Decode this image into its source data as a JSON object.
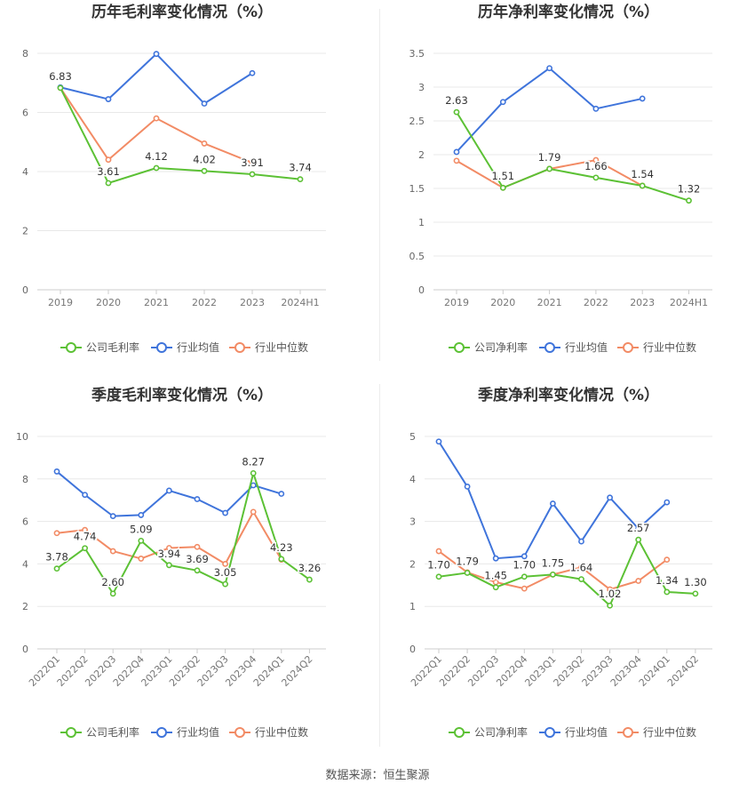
{
  "source_text": "数据来源：恒生聚源",
  "colors": {
    "company": "#5cc135",
    "industry_avg": "#3f74db",
    "industry_median": "#f28b65"
  },
  "chart_data": [
    {
      "type": "line",
      "title": "历年毛利率变化情况（%）",
      "categories": [
        "2019",
        "2020",
        "2021",
        "2022",
        "2023",
        "2024H1"
      ],
      "ylim": [
        0,
        8
      ],
      "yticks": [
        "0",
        "2",
        "4",
        "6",
        "8"
      ],
      "grid": true,
      "legend": "bottom",
      "series": [
        {
          "name": "公司毛利率",
          "values": [
            6.83,
            3.61,
            4.12,
            4.02,
            3.91,
            3.74
          ],
          "labels": [
            "6.83",
            "3.61",
            "4.12",
            "4.02",
            "3.91",
            "3.74"
          ]
        },
        {
          "name": "行业均值",
          "values": [
            6.85,
            6.45,
            7.98,
            6.3,
            7.33,
            null
          ]
        },
        {
          "name": "行业中位数",
          "values": [
            6.83,
            4.4,
            5.8,
            4.95,
            4.3,
            null
          ]
        }
      ]
    },
    {
      "type": "line",
      "title": "历年净利率变化情况（%）",
      "categories": [
        "2019",
        "2020",
        "2021",
        "2022",
        "2023",
        "2024H1"
      ],
      "ylim": [
        0,
        3.5
      ],
      "yticks": [
        "0",
        "0.5",
        "1",
        "1.5",
        "2",
        "2.5",
        "3",
        "3.5"
      ],
      "grid": true,
      "legend": "bottom",
      "series": [
        {
          "name": "公司净利率",
          "values": [
            2.63,
            1.51,
            1.79,
            1.66,
            1.54,
            1.32
          ],
          "labels": [
            "2.63",
            "1.51",
            "1.79",
            "1.66",
            "1.54",
            "1.32"
          ]
        },
        {
          "name": "行业均值",
          "values": [
            2.04,
            2.78,
            3.28,
            2.68,
            2.83,
            null
          ]
        },
        {
          "name": "行业中位数",
          "values": [
            1.91,
            1.51,
            1.79,
            1.92,
            1.54,
            null
          ]
        }
      ]
    },
    {
      "type": "line",
      "title": "季度毛利率变化情况（%）",
      "categories": [
        "2022Q1",
        "2022Q2",
        "2022Q3",
        "2022Q4",
        "2023Q1",
        "2023Q2",
        "2023Q3",
        "2023Q4",
        "2024Q1",
        "2024Q2"
      ],
      "ylim": [
        0,
        10
      ],
      "yticks": [
        "0",
        "2",
        "4",
        "6",
        "8",
        "10"
      ],
      "grid": true,
      "legend": "bottom",
      "series": [
        {
          "name": "公司毛利率",
          "values": [
            3.78,
            4.74,
            2.6,
            5.09,
            3.94,
            3.69,
            3.05,
            8.27,
            4.23,
            3.26
          ],
          "labels": [
            "3.78",
            "4.74",
            "2.60",
            "5.09",
            "3.94",
            "3.69",
            "3.05",
            "8.27",
            "4.23",
            "3.26"
          ]
        },
        {
          "name": "行业均值",
          "values": [
            8.35,
            7.25,
            6.25,
            6.3,
            7.45,
            7.05,
            6.4,
            7.7,
            7.3,
            null
          ]
        },
        {
          "name": "行业中位数",
          "values": [
            5.45,
            5.6,
            4.6,
            4.25,
            4.75,
            4.8,
            4.0,
            6.45,
            4.2,
            null
          ]
        }
      ]
    },
    {
      "type": "line",
      "title": "季度净利率变化情况（%）",
      "categories": [
        "2022Q1",
        "2022Q2",
        "2022Q3",
        "2022Q4",
        "2023Q1",
        "2023Q2",
        "2023Q3",
        "2023Q4",
        "2024Q1",
        "2024Q2"
      ],
      "ylim": [
        0,
        5
      ],
      "yticks": [
        "0",
        "1",
        "2",
        "3",
        "4",
        "5"
      ],
      "grid": true,
      "legend": "bottom",
      "series": [
        {
          "name": "公司净利率",
          "values": [
            1.7,
            1.79,
            1.45,
            1.7,
            1.75,
            1.64,
            1.02,
            2.57,
            1.34,
            1.3
          ],
          "labels": [
            "1.70",
            "1.79",
            "1.45",
            "1.70",
            "1.75",
            "1.64",
            "1.02",
            "2.57",
            "1.34",
            "1.30"
          ]
        },
        {
          "name": "行业均值",
          "values": [
            4.88,
            3.82,
            2.13,
            2.18,
            3.42,
            2.53,
            3.56,
            2.83,
            3.45,
            null
          ]
        },
        {
          "name": "行业中位数",
          "values": [
            2.3,
            1.8,
            1.57,
            1.42,
            1.75,
            1.92,
            1.4,
            1.6,
            2.1,
            null
          ]
        }
      ]
    }
  ]
}
